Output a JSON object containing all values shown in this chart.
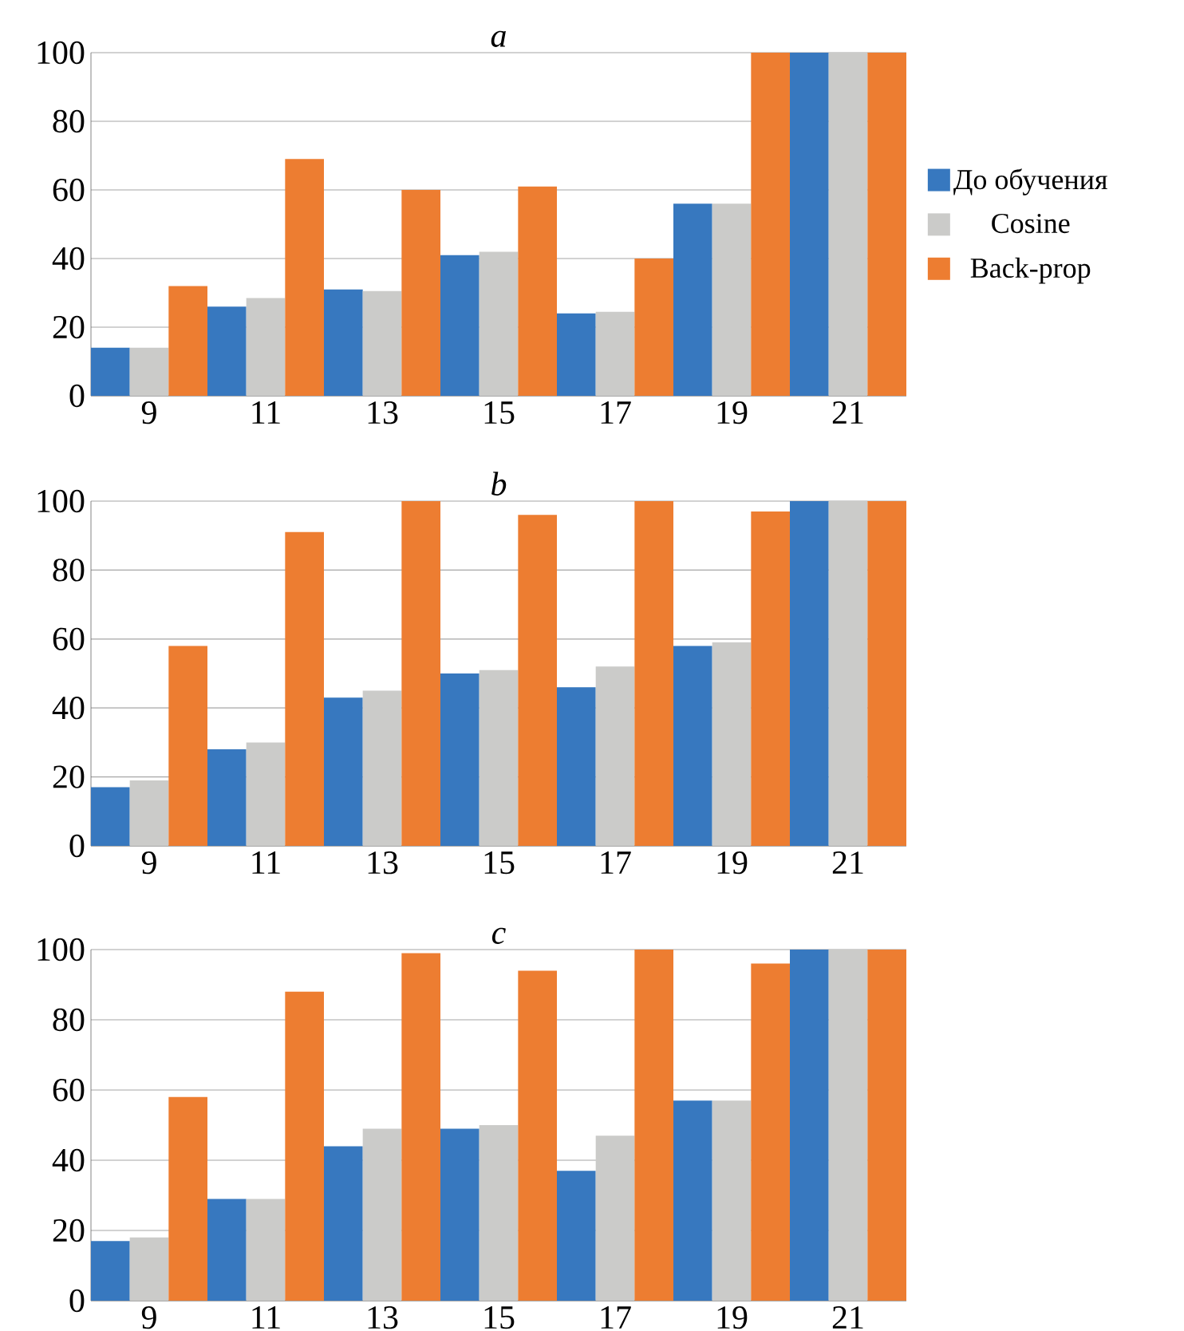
{
  "chart_data": [
    {
      "type": "bar",
      "title": "a",
      "categories": [
        "9",
        "11",
        "13",
        "15",
        "17",
        "19",
        "21"
      ],
      "ylim": [
        0,
        100
      ],
      "yticks": [
        0,
        20,
        40,
        60,
        80,
        100
      ],
      "grid": "y",
      "legend": "right",
      "series": [
        {
          "name": "До обучения",
          "color": "#3778bf",
          "values": [
            14,
            26,
            31,
            41,
            24,
            56,
            100
          ]
        },
        {
          "name": "Cosine",
          "color": "#cbcbc9",
          "values": [
            14,
            28.5,
            30.5,
            42,
            24.5,
            56,
            100
          ]
        },
        {
          "name": "Back-prop",
          "color": "#ed7d31",
          "values": [
            32,
            69,
            60,
            61,
            40,
            100,
            100
          ]
        }
      ]
    },
    {
      "type": "bar",
      "title": "b",
      "categories": [
        "9",
        "11",
        "13",
        "15",
        "17",
        "19",
        "21"
      ],
      "ylim": [
        0,
        100
      ],
      "yticks": [
        0,
        20,
        40,
        60,
        80,
        100
      ],
      "grid": "y",
      "series": [
        {
          "color": "#3778bf",
          "values": [
            17,
            28,
            43,
            50,
            46,
            58,
            100
          ]
        },
        {
          "color": "#cbcbc9",
          "values": [
            19,
            30,
            45,
            51,
            52,
            59,
            100
          ]
        },
        {
          "color": "#ed7d31",
          "values": [
            58,
            91,
            100,
            96,
            100,
            97,
            100
          ]
        }
      ]
    },
    {
      "type": "bar",
      "title": "c",
      "categories": [
        "9",
        "11",
        "13",
        "15",
        "17",
        "19",
        "21"
      ],
      "ylim": [
        0,
        100
      ],
      "yticks": [
        0,
        20,
        40,
        60,
        80,
        100
      ],
      "grid": "y",
      "series": [
        {
          "color": "#3778bf",
          "values": [
            17,
            29,
            44,
            49,
            37,
            57,
            100
          ]
        },
        {
          "color": "#cbcbc9",
          "values": [
            18,
            29,
            49,
            50,
            47,
            57,
            100
          ]
        },
        {
          "color": "#ed7d31",
          "values": [
            58,
            88,
            99,
            94,
            100,
            96,
            100
          ]
        }
      ]
    }
  ]
}
